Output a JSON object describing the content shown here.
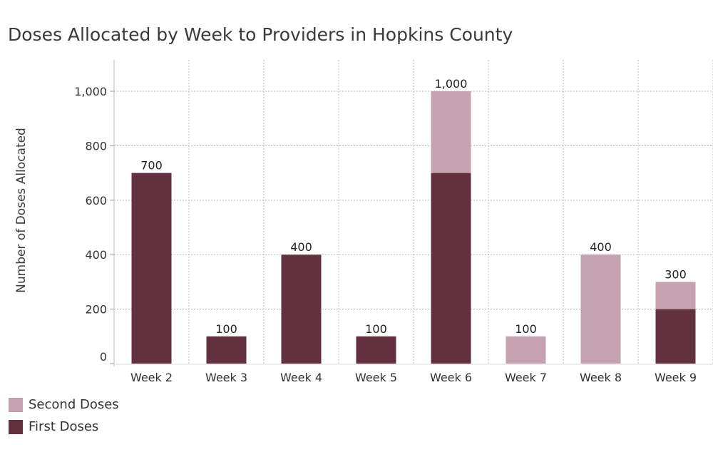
{
  "chart_data": {
    "type": "bar",
    "stacked": true,
    "title": "Doses Allocated by Week to Providers in Hopkins County",
    "ylabel": "Number of Doses Allocated",
    "xlabel": "",
    "ylim": [
      0,
      1100
    ],
    "yticks": [
      0,
      200,
      400,
      600,
      800,
      1000
    ],
    "ytick_labels": [
      "0",
      "200",
      "400",
      "600",
      "800",
      "1,000"
    ],
    "categories": [
      "Week 2",
      "Week 3",
      "Week 4",
      "Week 5",
      "Week 6",
      "Week 7",
      "Week 8",
      "Week 9"
    ],
    "series": [
      {
        "name": "First Doses",
        "color": "#62303f",
        "values": [
          700,
          100,
          400,
          100,
          700,
          0,
          0,
          200
        ]
      },
      {
        "name": "Second Doses",
        "color": "#c6a2b0",
        "values": [
          0,
          0,
          0,
          0,
          300,
          100,
          400,
          100
        ]
      }
    ],
    "total_labels": [
      "700",
      "100",
      "400",
      "100",
      "1,000",
      "100",
      "400",
      "300"
    ],
    "grid": true,
    "legend_position": "bottom-left",
    "legend_order": [
      "Second Doses",
      "First Doses"
    ]
  }
}
